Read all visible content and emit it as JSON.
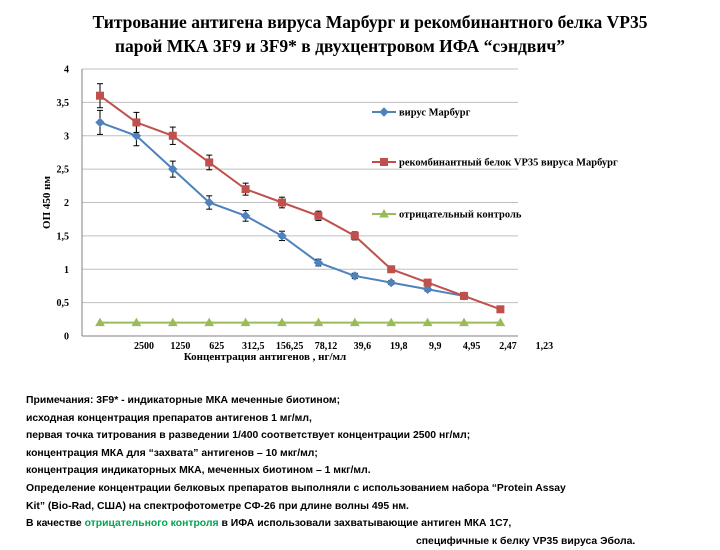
{
  "title": {
    "line1": "Титрование антигена вируса Марбург и рекомбинантного белка VP35",
    "line2": "парой МКА 3F9 и 3F9* в двухцентровом ИФА “сэндвич”"
  },
  "chart_data": {
    "type": "line",
    "categories": [
      "2500",
      "1250",
      "625",
      "312,5",
      "156,25",
      "78,12",
      "39,6",
      "19,8",
      "9,9",
      "4,95",
      "2,47",
      "1,23"
    ],
    "xlabel": "Концентрация антигенов , нг/мл",
    "ylabel": "ОП 450 нм",
    "ylim": [
      0,
      4
    ],
    "yticks": [
      "0",
      "0,5",
      "1",
      "1,5",
      "2",
      "2,5",
      "3",
      "3,5",
      "4"
    ],
    "grid": true,
    "legend_position": "right",
    "series": [
      {
        "name": "вирус Марбург",
        "color": "#4f81bd",
        "marker": "diamond",
        "values": [
          3.2,
          3.0,
          2.5,
          2.0,
          1.8,
          1.5,
          1.1,
          0.9,
          0.8,
          0.7,
          0.6,
          null
        ],
        "errors": [
          0.18,
          0.15,
          0.12,
          0.1,
          0.08,
          0.07,
          0.05,
          0.04,
          0.03,
          0.03,
          0.02,
          null
        ]
      },
      {
        "name": "рекомбинантный белок VP35 вируса Марбург",
        "color": "#c0504d",
        "marker": "square",
        "values": [
          3.6,
          3.2,
          3.0,
          2.6,
          2.2,
          2.0,
          1.8,
          1.5,
          1.0,
          0.8,
          0.6,
          0.4
        ],
        "errors": [
          0.18,
          0.15,
          0.13,
          0.11,
          0.09,
          0.08,
          0.07,
          0.06,
          0.0,
          0.0,
          0.0,
          0.0
        ]
      },
      {
        "name": "отрицательный контроль",
        "color": "#9bbb59",
        "marker": "triangle",
        "values": [
          0.2,
          0.2,
          0.2,
          0.2,
          0.2,
          0.2,
          0.2,
          0.2,
          0.2,
          0.2,
          0.2,
          0.2
        ],
        "errors": null
      }
    ]
  },
  "notes": {
    "line1": "Примечания: 3F9* - индикаторные МКА меченные биотином;",
    "line2": "исходная концентрация препаратов антигенов 1 мг/мл,",
    "line3": "первая точка титрования в разведении 1/400 соответствует концентрации 2500 нг/мл;",
    "line4": "концентрация МКА для “захвата” антигенов – 10 мкг/мл;",
    "line5": "концентрация индикаторных МКА, меченных биотином – 1 мкг/мл.",
    "line6": "Определение концентрации белковых препаратов выполняли с использованием набора “Protein Assay",
    "line7": "Kit” (Bio-Rad, США) на спектрофотометре СФ-26 при длине волны 495 нм.",
    "line8_before": "В качестве ",
    "line8_highlight": "отрицательного контроля",
    "line8_after": " в ИФА  использовали  захватывающие антиген МКА 1С7,",
    "line9": "специфичные к белку VP35 вируса Эбола.",
    "highlight_color": "#00a550"
  }
}
